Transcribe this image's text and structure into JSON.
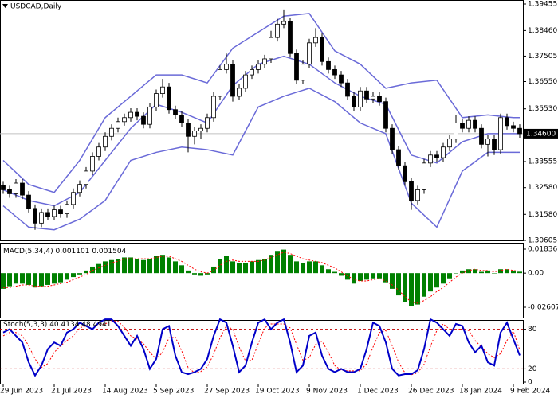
{
  "chart_data": [
    {
      "type": "candlestick",
      "title": "USDCAD,Daily",
      "categories": [
        "29 Jun 2023",
        null,
        null,
        null,
        null,
        null,
        null,
        null,
        "21 Jul 2023",
        null,
        null,
        null,
        null,
        null,
        null,
        null,
        "14 Aug 2023",
        null,
        null,
        null,
        null,
        null,
        null,
        null,
        "5 Sep 2023",
        null,
        null,
        null,
        null,
        null,
        null,
        null,
        "27 Sep 2023",
        null,
        null,
        null,
        null,
        null,
        null,
        null,
        "19 Oct 2023",
        null,
        null,
        null,
        null,
        null,
        null,
        null,
        "9 Nov 2023",
        null,
        null,
        null,
        null,
        null,
        null,
        null,
        "1 Dec 2023",
        null,
        null,
        null,
        null,
        null,
        null,
        null,
        "26 Dec 2023",
        null,
        null,
        null,
        null,
        null,
        null,
        null,
        "18 Jan 2024",
        null,
        null,
        null,
        null,
        null,
        null,
        null,
        "9 Feb 2024",
        null
      ],
      "open": [
        1.3265,
        1.325,
        1.3235,
        1.3275,
        1.323,
        1.318,
        1.3125,
        1.3165,
        1.315,
        1.3175,
        1.316,
        1.3195,
        1.324,
        1.327,
        1.332,
        1.3375,
        1.341,
        1.345,
        1.348,
        1.3505,
        1.352,
        1.354,
        1.3525,
        1.3495,
        1.356,
        1.361,
        1.3635,
        1.355,
        1.353,
        1.35,
        1.345,
        1.347,
        1.348,
        1.352,
        1.36,
        1.37,
        1.372,
        1.36,
        1.363,
        1.368,
        1.37,
        1.372,
        1.374,
        1.382,
        1.387,
        1.388,
        1.376,
        1.366,
        1.372,
        1.38,
        1.382,
        1.373,
        1.37,
        1.368,
        1.365,
        1.36,
        1.356,
        1.362,
        1.359,
        1.36,
        1.358,
        1.348,
        1.34,
        1.334,
        1.328,
        1.321,
        1.325,
        1.335,
        1.338,
        1.337,
        1.341,
        1.344,
        1.35,
        1.348,
        1.351,
        1.348,
        1.342,
        1.344,
        1.34,
        1.352,
        1.349,
        1.348
      ],
      "high": [
        1.328,
        1.3265,
        1.329,
        1.329,
        1.3245,
        1.3195,
        1.318,
        1.318,
        1.319,
        1.319,
        1.321,
        1.3255,
        1.3285,
        1.3335,
        1.339,
        1.3425,
        1.3465,
        1.3495,
        1.352,
        1.3535,
        1.3555,
        1.3555,
        1.354,
        1.3575,
        1.3625,
        1.3665,
        1.365,
        1.3565,
        1.3545,
        1.3515,
        1.3485,
        1.3495,
        1.3535,
        1.3615,
        1.3715,
        1.376,
        1.3735,
        1.3645,
        1.3695,
        1.3715,
        1.3735,
        1.3755,
        1.3845,
        1.389,
        1.3925,
        1.3895,
        1.3775,
        1.3735,
        1.3815,
        1.3855,
        1.3835,
        1.3745,
        1.3715,
        1.3695,
        1.3665,
        1.3615,
        1.3635,
        1.3635,
        1.3615,
        1.3615,
        1.3595,
        1.3495,
        1.3415,
        1.3355,
        1.3295,
        1.3265,
        1.3365,
        1.3395,
        1.3395,
        1.3425,
        1.3455,
        1.353,
        1.3515,
        1.3525,
        1.3525,
        1.3495,
        1.3455,
        1.3455,
        1.3535,
        1.3535,
        1.3505,
        1.3495
      ],
      "low": [
        1.3235,
        1.322,
        1.322,
        1.3215,
        1.3165,
        1.31,
        1.311,
        1.3135,
        1.3135,
        1.3145,
        1.3145,
        1.318,
        1.3225,
        1.3255,
        1.3305,
        1.336,
        1.3395,
        1.3435,
        1.3465,
        1.349,
        1.3505,
        1.351,
        1.348,
        1.348,
        1.3545,
        1.3595,
        1.3535,
        1.3515,
        1.3485,
        1.339,
        1.342,
        1.344,
        1.3465,
        1.3505,
        1.3585,
        1.3685,
        1.358,
        1.3585,
        1.3615,
        1.3665,
        1.3685,
        1.3705,
        1.3725,
        1.3805,
        1.3855,
        1.3745,
        1.3645,
        1.3645,
        1.3705,
        1.3785,
        1.3715,
        1.3685,
        1.3665,
        1.3635,
        1.3585,
        1.3545,
        1.3545,
        1.3575,
        1.3575,
        1.3565,
        1.3465,
        1.3385,
        1.3325,
        1.3265,
        1.3175,
        1.3195,
        1.3235,
        1.3335,
        1.3355,
        1.3355,
        1.3395,
        1.3425,
        1.3465,
        1.3465,
        1.3465,
        1.3405,
        1.3375,
        1.338,
        1.3385,
        1.3475,
        1.3465,
        1.3445
      ],
      "close": [
        1.325,
        1.3235,
        1.3275,
        1.323,
        1.318,
        1.3125,
        1.3165,
        1.315,
        1.3175,
        1.316,
        1.3195,
        1.324,
        1.327,
        1.332,
        1.3375,
        1.341,
        1.345,
        1.348,
        1.3505,
        1.352,
        1.354,
        1.3525,
        1.3495,
        1.356,
        1.361,
        1.3635,
        1.355,
        1.353,
        1.35,
        1.345,
        1.347,
        1.348,
        1.352,
        1.36,
        1.37,
        1.372,
        1.36,
        1.363,
        1.368,
        1.37,
        1.372,
        1.374,
        1.382,
        1.387,
        1.388,
        1.376,
        1.366,
        1.372,
        1.38,
        1.382,
        1.373,
        1.37,
        1.368,
        1.365,
        1.36,
        1.356,
        1.362,
        1.359,
        1.36,
        1.358,
        1.348,
        1.34,
        1.334,
        1.328,
        1.321,
        1.325,
        1.335,
        1.338,
        1.337,
        1.341,
        1.344,
        1.35,
        1.348,
        1.351,
        1.348,
        1.342,
        1.344,
        1.34,
        1.352,
        1.349,
        1.348,
        1.346
      ],
      "bands": {
        "color": "#6a6ad8",
        "x": [
          0,
          4,
          8,
          12,
          16,
          20,
          24,
          28,
          32,
          36,
          40,
          44,
          48,
          52,
          56,
          60,
          64,
          68,
          72,
          76,
          80,
          81
        ],
        "upper": [
          1.336,
          1.327,
          1.324,
          1.336,
          1.352,
          1.36,
          1.368,
          1.368,
          1.365,
          1.378,
          1.384,
          1.39,
          1.391,
          1.377,
          1.372,
          1.363,
          1.365,
          1.366,
          1.352,
          1.353,
          1.352,
          1.352
        ],
        "middle": [
          1.325,
          1.321,
          1.319,
          1.324,
          1.336,
          1.348,
          1.357,
          1.354,
          1.35,
          1.364,
          1.372,
          1.375,
          1.372,
          1.365,
          1.36,
          1.357,
          1.338,
          1.335,
          1.343,
          1.346,
          1.346,
          1.346
        ],
        "lower": [
          1.319,
          1.311,
          1.31,
          1.314,
          1.321,
          1.336,
          1.339,
          1.341,
          1.34,
          1.338,
          1.356,
          1.36,
          1.363,
          1.358,
          1.35,
          1.346,
          1.32,
          1.311,
          1.332,
          1.339,
          1.339,
          1.339
        ]
      },
      "current_price": {
        "value": 1.346,
        "label": "1.34600"
      },
      "ylim": [
        1.30605,
        1.39455
      ],
      "yticks": [
        1.39455,
        {
          "value": 1.3846,
          "label": "1.38460"
        },
        1.37505,
        {
          "value": 1.3655,
          "label": "1.36550"
        },
        {
          "value": 1.3553,
          "label": "1.35530"
        },
        1.33555,
        {
          "value": 1.3258,
          "label": "1.32580"
        },
        {
          "value": 1.3158,
          "label": "1.31580"
        },
        1.30605
      ]
    },
    {
      "type": "bar",
      "title": "MACD(5,34,4)",
      "color": "#008000",
      "signal_color": "#ff0000",
      "values": [
        -0.012,
        -0.01,
        -0.008,
        -0.008,
        -0.009,
        -0.011,
        -0.01,
        -0.009,
        -0.008,
        -0.007,
        -0.005,
        -0.003,
        -0.001,
        0.002,
        0.005,
        0.007,
        0.009,
        0.01,
        0.011,
        0.012,
        0.012,
        0.011,
        0.01,
        0.011,
        0.013,
        0.014,
        0.012,
        0.009,
        0.006,
        0.002,
        -0.001,
        -0.002,
        -0.001,
        0.005,
        0.011,
        0.013,
        0.009,
        0.008,
        0.008,
        0.009,
        0.01,
        0.011,
        0.014,
        0.017,
        0.018,
        0.014,
        0.009,
        0.008,
        0.009,
        0.009,
        0.006,
        0.003,
        0.001,
        -0.002,
        -0.005,
        -0.008,
        -0.006,
        -0.005,
        -0.004,
        -0.004,
        -0.007,
        -0.012,
        -0.017,
        -0.022,
        -0.025,
        -0.024,
        -0.018,
        -0.014,
        -0.011,
        -0.008,
        -0.004,
        0.0,
        0.002,
        0.003,
        0.003,
        0.001,
        0.002,
        0.0,
        0.003,
        0.003,
        0.002,
        0.001101
      ],
      "signal": [
        -0.011,
        -0.011,
        -0.01,
        -0.009,
        -0.009,
        -0.01,
        -0.01,
        -0.01,
        -0.009,
        -0.008,
        -0.007,
        -0.005,
        -0.003,
        -0.001,
        0.002,
        0.004,
        0.006,
        0.008,
        0.009,
        0.011,
        0.011,
        0.011,
        0.011,
        0.011,
        0.012,
        0.013,
        0.013,
        0.011,
        0.009,
        0.006,
        0.003,
        0.001,
        0.0,
        0.002,
        0.006,
        0.009,
        0.01,
        0.009,
        0.009,
        0.009,
        0.009,
        0.01,
        0.012,
        0.014,
        0.016,
        0.015,
        0.013,
        0.011,
        0.01,
        0.009,
        0.008,
        0.006,
        0.004,
        0.001,
        -0.002,
        -0.005,
        -0.006,
        -0.006,
        -0.005,
        -0.004,
        -0.006,
        -0.009,
        -0.013,
        -0.018,
        -0.022,
        -0.023,
        -0.021,
        -0.018,
        -0.014,
        -0.011,
        -0.007,
        -0.003,
        0.0,
        0.002,
        0.003,
        0.002,
        0.002,
        0.001,
        0.002,
        0.003,
        0.002,
        0.001504
      ],
      "ylim": [
        -0.026076,
        0.018367
      ],
      "yticks": [
        0.018367,
        {
          "value": 0,
          "label": "0.00"
        },
        -0.026076
      ]
    },
    {
      "type": "line",
      "title": "Stoch(5,3,3)",
      "k_color": "#0000c8",
      "d_color": "#ff0000",
      "k": [
        75,
        80,
        70,
        60,
        30,
        10,
        25,
        50,
        60,
        55,
        75,
        80,
        90,
        85,
        80,
        90,
        95,
        95,
        85,
        70,
        55,
        70,
        50,
        20,
        35,
        80,
        85,
        40,
        15,
        12,
        15,
        20,
        35,
        70,
        95,
        90,
        55,
        15,
        25,
        60,
        90,
        95,
        80,
        90,
        95,
        60,
        15,
        25,
        70,
        75,
        40,
        20,
        15,
        20,
        15,
        15,
        20,
        50,
        90,
        85,
        60,
        20,
        10,
        12,
        12,
        18,
        50,
        95,
        90,
        80,
        70,
        88,
        85,
        60,
        45,
        55,
        30,
        25,
        75,
        90,
        65,
        40.4134
      ],
      "d": [
        70,
        75,
        75,
        70,
        55,
        35,
        22,
        28,
        45,
        55,
        63,
        70,
        82,
        85,
        85,
        85,
        88,
        93,
        92,
        83,
        70,
        65,
        58,
        45,
        35,
        45,
        67,
        68,
        47,
        22,
        14,
        16,
        23,
        42,
        67,
        85,
        80,
        53,
        32,
        33,
        58,
        82,
        88,
        88,
        88,
        82,
        57,
        33,
        37,
        57,
        62,
        45,
        25,
        18,
        17,
        17,
        17,
        28,
        53,
        75,
        78,
        55,
        30,
        14,
        11,
        14,
        27,
        54,
        78,
        88,
        80,
        79,
        81,
        78,
        63,
        53,
        43,
        37,
        43,
        63,
        77,
        48.4941
      ],
      "levels": [
        20,
        80
      ],
      "ylim": [
        0,
        100
      ],
      "yticks": [
        80,
        20,
        0
      ]
    }
  ]
}
